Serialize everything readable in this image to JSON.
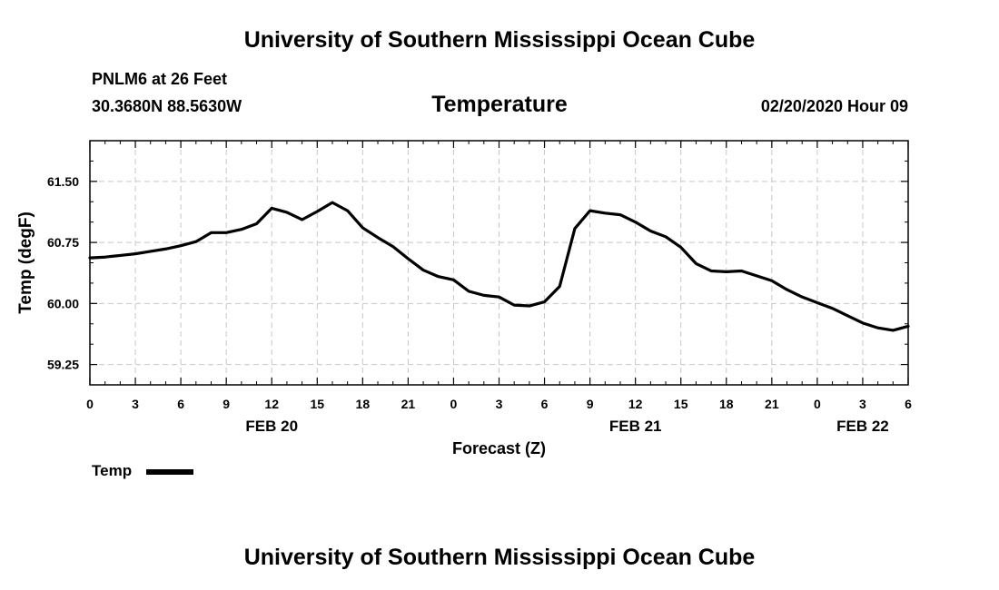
{
  "header": {
    "title_top": "University of Southern Mississippi Ocean Cube",
    "station": "PNLM6 at 26 Feet",
    "coords": "30.3680N 88.5630W",
    "chart_title": "Temperature",
    "datetime": "02/20/2020 Hour 09"
  },
  "footer": {
    "title_bottom": "University of Southern Mississippi Ocean Cube"
  },
  "legend": {
    "label": "Temp"
  },
  "chart_data": {
    "type": "line",
    "title": "Temperature",
    "xlabel": "Forecast (Z)",
    "ylabel": "Temp (degF)",
    "xlim": [
      0,
      54
    ],
    "ylim": [
      59.0,
      62.0
    ],
    "yticks": [
      59.25,
      60.0,
      60.75,
      61.5
    ],
    "ytick_labels": [
      "59.25",
      "60.00",
      "60.75",
      "61.50"
    ],
    "xticks": [
      0,
      3,
      6,
      9,
      12,
      15,
      18,
      21,
      24,
      27,
      30,
      33,
      36,
      39,
      42,
      45,
      48,
      51,
      54
    ],
    "xtick_labels": [
      "0",
      "3",
      "6",
      "9",
      "12",
      "15",
      "18",
      "21",
      "0",
      "3",
      "6",
      "9",
      "12",
      "15",
      "18",
      "21",
      "0",
      "3",
      "6"
    ],
    "date_labels": [
      {
        "x": 12,
        "label": "FEB 20"
      },
      {
        "x": 36,
        "label": "FEB 21"
      },
      {
        "x": 51,
        "label": "FEB 22"
      }
    ],
    "grid": true,
    "series": [
      {
        "name": "Temp",
        "color": "#000000",
        "x": [
          0,
          1,
          2,
          3,
          4,
          5,
          6,
          7,
          8,
          9,
          10,
          11,
          12,
          13,
          14,
          15,
          16,
          17,
          18,
          19,
          20,
          21,
          22,
          23,
          24,
          25,
          26,
          27,
          28,
          29,
          30,
          31,
          32,
          33,
          34,
          35,
          36,
          37,
          38,
          39,
          40,
          41,
          42,
          43,
          44,
          45,
          46,
          47,
          48,
          49,
          50,
          51,
          52,
          53,
          54
        ],
        "values": [
          60.56,
          60.57,
          60.59,
          60.61,
          60.64,
          60.67,
          60.71,
          60.76,
          60.87,
          60.87,
          60.91,
          60.98,
          61.17,
          61.12,
          61.03,
          61.13,
          61.24,
          61.14,
          60.93,
          60.81,
          60.7,
          60.55,
          60.41,
          60.33,
          60.29,
          60.15,
          60.1,
          60.08,
          59.98,
          59.97,
          60.02,
          60.21,
          60.92,
          61.14,
          61.11,
          61.09,
          61.0,
          60.89,
          60.82,
          60.69,
          60.49,
          60.4,
          60.39,
          60.4,
          60.34,
          60.28,
          60.17,
          60.08,
          60.01,
          59.94,
          59.85,
          59.76,
          59.7,
          59.67,
          59.72
        ]
      }
    ]
  }
}
